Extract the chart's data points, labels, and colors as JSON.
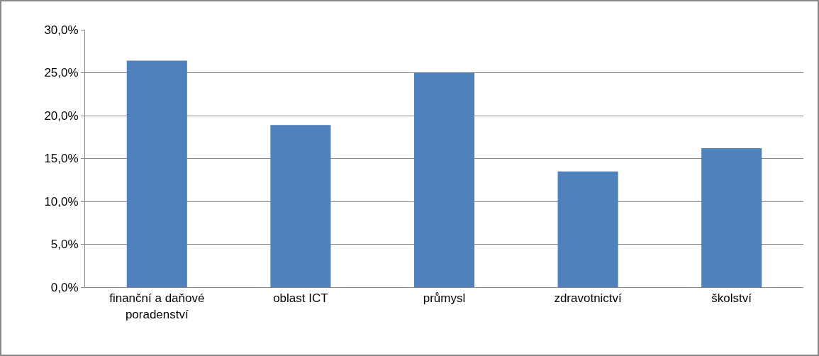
{
  "chart_data": {
    "type": "bar",
    "categories": [
      "finanční a daňové poradenství",
      "oblast ICT",
      "průmysl",
      "zdravotnictví",
      "školství"
    ],
    "values": [
      26.4,
      18.9,
      25.0,
      13.5,
      16.2
    ],
    "color": "#4f81bd",
    "ylim": [
      0,
      30
    ],
    "yticks": [
      {
        "value": 0,
        "label": "0,0%"
      },
      {
        "value": 5,
        "label": "5,0%"
      },
      {
        "value": 10,
        "label": "10,0%"
      },
      {
        "value": 15,
        "label": "15,0%"
      },
      {
        "value": 20,
        "label": "20,0%"
      },
      {
        "value": 25,
        "label": "25,0%"
      },
      {
        "value": 30,
        "label": "30,0%"
      }
    ],
    "grid": "y",
    "legend": false
  }
}
